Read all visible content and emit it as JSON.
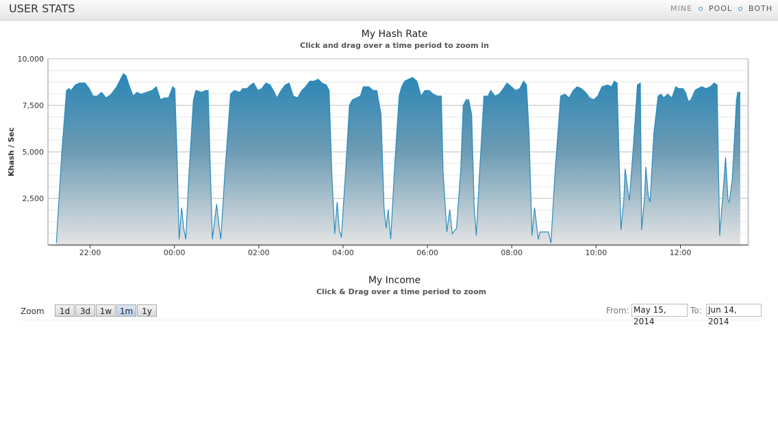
{
  "header": {
    "title": "USER STATS",
    "tabs": [
      "MINE",
      "POOL",
      "BOTH"
    ]
  },
  "chart_data": {
    "type": "area",
    "title": "My Hash Rate",
    "subtitle": "Click and drag over a time period to zoom in",
    "y_label": "Khash / Sec",
    "x": [
      21.2,
      21.33,
      21.44,
      21.49,
      21.55,
      21.65,
      21.75,
      21.88,
      21.98,
      22.07,
      22.17,
      22.27,
      22.38,
      22.5,
      22.63,
      22.72,
      22.79,
      22.85,
      22.92,
      23.02,
      23.11,
      23.21,
      23.34,
      23.47,
      23.57,
      23.67,
      23.76,
      23.86,
      23.96,
      24.01,
      24.06,
      24.11,
      24.17,
      24.22,
      24.27,
      24.35,
      24.45,
      24.51,
      24.64,
      24.74,
      24.8,
      24.84,
      24.9,
      25.0,
      25.07,
      25.1,
      25.2,
      25.33,
      25.42,
      25.55,
      25.62,
      25.72,
      25.81,
      25.88,
      25.98,
      26.07,
      26.17,
      26.27,
      26.37,
      26.43,
      26.53,
      26.63,
      26.72,
      26.82,
      26.92,
      27.02,
      27.11,
      27.21,
      27.31,
      27.41,
      27.5,
      27.6,
      27.67,
      27.73,
      27.8,
      27.86,
      27.91,
      27.96,
      28.06,
      28.15,
      28.22,
      28.32,
      28.41,
      28.48,
      28.61,
      28.71,
      28.8,
      28.9,
      28.97,
      29.02,
      29.07,
      29.13,
      29.23,
      29.33,
      29.39,
      29.46,
      29.55,
      29.65,
      29.75,
      29.85,
      29.94,
      30.04,
      30.14,
      30.24,
      30.33,
      30.37,
      30.46,
      30.53,
      30.59,
      30.69,
      30.79,
      30.85,
      30.92,
      30.98,
      31.05,
      31.11,
      31.16,
      31.24,
      31.34,
      31.44,
      31.5,
      31.6,
      31.7,
      31.8,
      31.89,
      31.99,
      32.09,
      32.19,
      32.28,
      32.35,
      32.41,
      32.48,
      32.54,
      32.63,
      32.67,
      32.8,
      32.87,
      32.93,
      33.03,
      33.16,
      33.26,
      33.36,
      33.46,
      33.55,
      33.65,
      33.75,
      33.85,
      33.94,
      34.04,
      34.14,
      34.27,
      34.37,
      34.43,
      34.5,
      34.59,
      34.66,
      34.69,
      34.76,
      34.79,
      34.89,
      34.98,
      35.05,
      35.08,
      35.15,
      35.18,
      35.24,
      35.28,
      35.37,
      35.47,
      35.54,
      35.6,
      35.7,
      35.8,
      35.89,
      35.96,
      36.06,
      36.12,
      36.19,
      36.25,
      36.35,
      36.41,
      36.51,
      36.61,
      36.71,
      36.8,
      36.87,
      36.93,
      37.0,
      37.07,
      37.13,
      37.16,
      37.23,
      37.33,
      37.36,
      37.42
    ],
    "values": [
      100,
      5000,
      8300,
      8400,
      8300,
      8600,
      8700,
      8700,
      8400,
      8000,
      8000,
      8200,
      7900,
      8100,
      8500,
      8900,
      9200,
      9100,
      8600,
      8000,
      8200,
      8100,
      8200,
      8300,
      8500,
      7800,
      7900,
      7900,
      8500,
      8400,
      5000,
      300,
      2000,
      900,
      300,
      4000,
      7800,
      8300,
      8200,
      8300,
      8300,
      5000,
      300,
      2200,
      800,
      300,
      4000,
      8100,
      8300,
      8200,
      8400,
      8400,
      8600,
      8700,
      8300,
      8400,
      8700,
      8600,
      8200,
      7900,
      8300,
      8600,
      8700,
      8000,
      7900,
      8300,
      8500,
      8800,
      8800,
      8900,
      8700,
      8600,
      8300,
      4000,
      600,
      2300,
      800,
      400,
      4000,
      7500,
      7800,
      7900,
      8000,
      8500,
      8500,
      8300,
      8300,
      7000,
      2000,
      900,
      1900,
      300,
      4500,
      8000,
      8500,
      8800,
      8900,
      9000,
      8800,
      8000,
      8300,
      8300,
      8100,
      8000,
      8000,
      4000,
      700,
      1900,
      600,
      900,
      4000,
      7500,
      7800,
      7800,
      7000,
      2000,
      500,
      4000,
      8000,
      8000,
      8300,
      8000,
      8100,
      8400,
      8700,
      8500,
      8300,
      8400,
      8800,
      8600,
      6000,
      500,
      2000,
      300,
      700,
      700,
      700,
      100,
      4000,
      8000,
      8100,
      7900,
      8300,
      8500,
      8400,
      8200,
      7900,
      7800,
      8000,
      8500,
      8600,
      8500,
      8800,
      8700,
      800,
      2500,
      4100,
      2800,
      2400,
      5500,
      8600,
      8700,
      800,
      2600,
      4200,
      2600,
      2300,
      6000,
      8000,
      8100,
      7900,
      8100,
      7900,
      8500,
      8400,
      8400,
      8200,
      7700,
      7800,
      8300,
      8400,
      8500,
      8400,
      8500,
      8700,
      8600,
      500,
      2500,
      4700,
      2400,
      2300,
      3500,
      7800,
      8200,
      8200
    ],
    "color": "#2a8cbd",
    "xlim": [
      21,
      37.6
    ],
    "xticks": [
      {
        "value": 22,
        "label": "22:00"
      },
      {
        "value": 24,
        "label": "00:00"
      },
      {
        "value": 26,
        "label": "02:00"
      },
      {
        "value": 28,
        "label": "04:00"
      },
      {
        "value": 30,
        "label": "06:00"
      },
      {
        "value": 32,
        "label": "08:00"
      },
      {
        "value": 34,
        "label": "10:00"
      },
      {
        "value": 36,
        "label": "12:00"
      }
    ],
    "ylim": [
      0,
      10000
    ],
    "yticks": [
      {
        "value": 2500,
        "label": "2,500"
      },
      {
        "value": 5000,
        "label": "5,000"
      },
      {
        "value": 7500,
        "label": "7,500"
      },
      {
        "value": 10000,
        "label": "10,000"
      }
    ],
    "grid": true
  },
  "income": {
    "title": "My Income",
    "subtitle": "Click & Drag over a time period to zoom",
    "zoom_label": "Zoom",
    "zoom_buttons": [
      "1d",
      "3d",
      "1w",
      "1m",
      "1y"
    ],
    "active_zoom": "1m",
    "from_label": "From:",
    "from": "May 15, 2014",
    "to_label": "To:",
    "to": "Jun 14, 2014"
  }
}
